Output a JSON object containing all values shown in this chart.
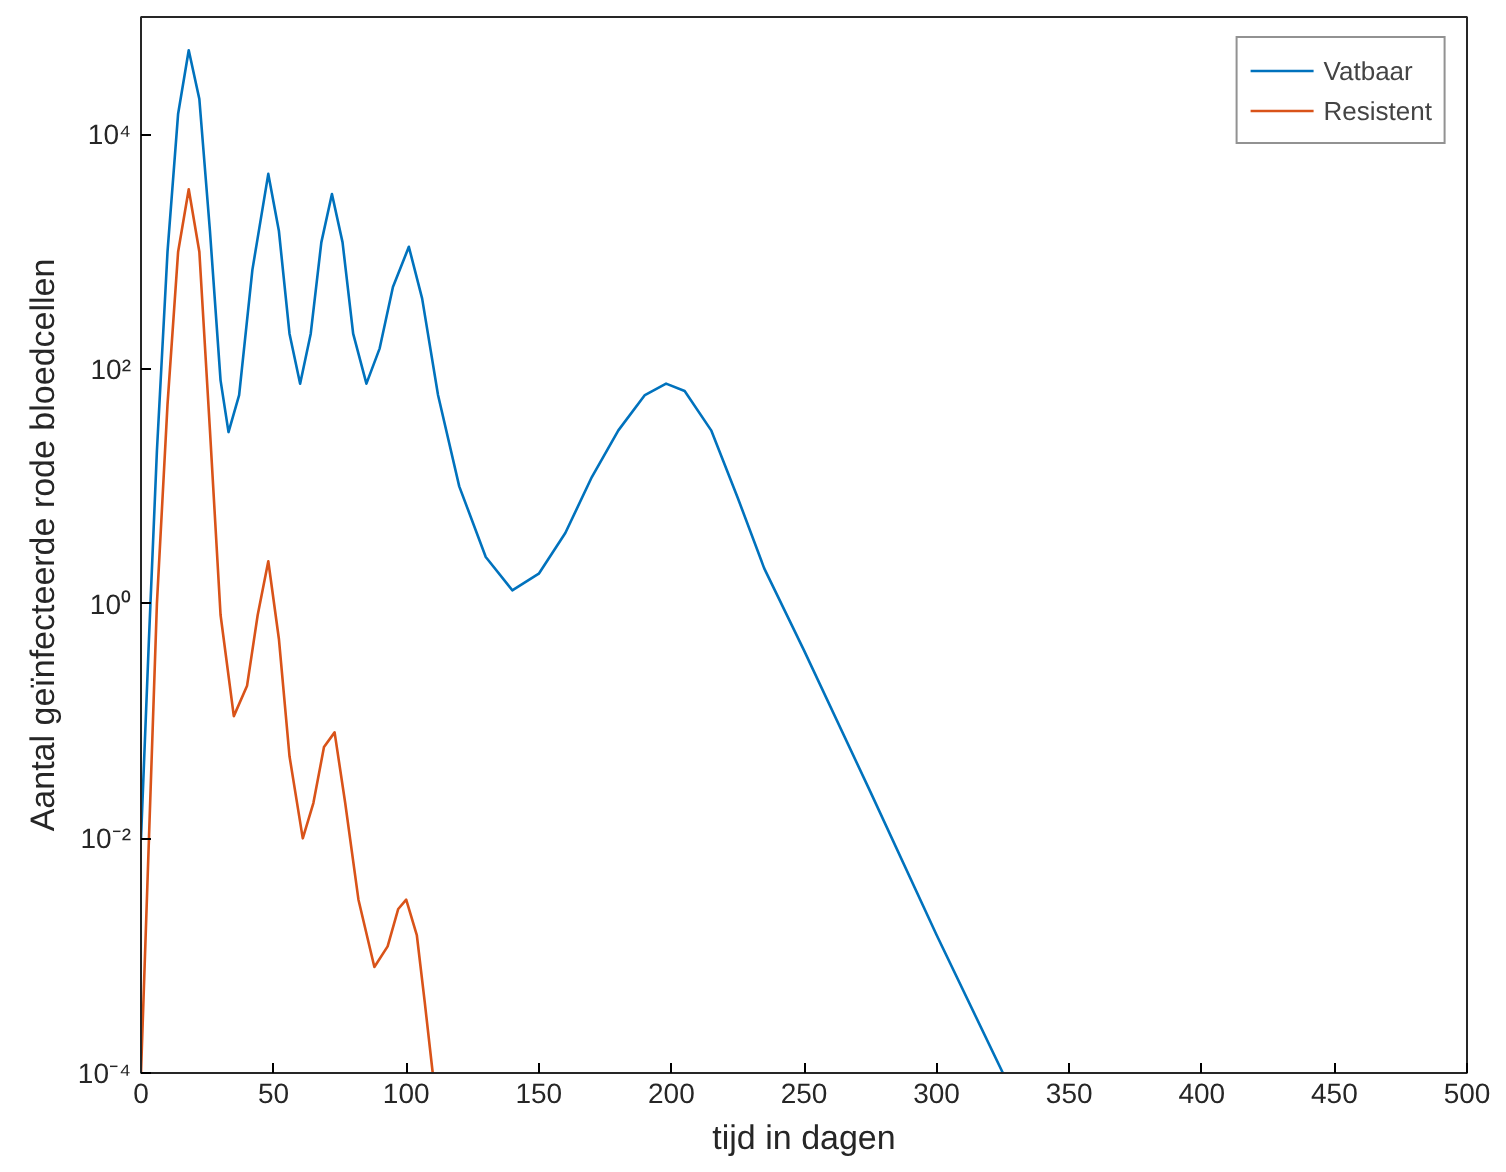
{
  "chart_data": {
    "type": "line",
    "xlabel": "tijd in dagen",
    "ylabel": "Aantal geïnfecteerde rode bloedcellen",
    "log": "y",
    "xlim": [
      0,
      500
    ],
    "ylim": [
      0.0001,
      100000
    ],
    "xticks": [
      0,
      50,
      100,
      150,
      200,
      250,
      300,
      350,
      400,
      450,
      500
    ],
    "yticks": [
      {
        "value": 0.0001,
        "label": "10⁻⁴"
      },
      {
        "value": 0.01,
        "label": "10⁻²"
      },
      {
        "value": 1,
        "label": "10⁰"
      },
      {
        "value": 100,
        "label": "10²"
      },
      {
        "value": 10000,
        "label": "10⁴"
      }
    ],
    "grid": false,
    "legend": "top right",
    "line_style": "solid",
    "marker": "none",
    "series": [
      {
        "name": "Vatbaar",
        "color": "#0072bd",
        "x": [
          0,
          3,
          6,
          10,
          14,
          18,
          22,
          26,
          30,
          33,
          37,
          42,
          48,
          52,
          56,
          60,
          64,
          68,
          72,
          76,
          80,
          85,
          90,
          95,
          101,
          106,
          112,
          120,
          130,
          140,
          150,
          160,
          170,
          180,
          190,
          198,
          205,
          215,
          225,
          235,
          250,
          275,
          300,
          325
        ],
        "values": [
          0.01,
          0.5,
          20,
          1000,
          15000,
          52000,
          20000,
          1500,
          80,
          29,
          60,
          700,
          4600,
          1500,
          200,
          75,
          200,
          1200,
          3100,
          1200,
          200,
          75,
          150,
          500,
          1100,
          400,
          60,
          10,
          2.5,
          1.3,
          1.8,
          4,
          12,
          30,
          60,
          75,
          65,
          30,
          8,
          2,
          0.4,
          0.025,
          0.0015,
          0.0001
        ]
      },
      {
        "name": "Resistent",
        "color": "#d95319",
        "x": [
          0,
          3,
          6,
          10,
          14,
          18,
          22,
          26,
          30,
          35,
          40,
          44,
          48,
          52,
          56,
          61,
          65,
          69,
          73,
          77,
          82,
          88,
          93,
          97,
          100,
          104,
          107,
          110
        ],
        "values": [
          0.0001,
          0.01,
          1,
          50,
          1000,
          3400,
          1000,
          30,
          0.8,
          0.11,
          0.2,
          0.8,
          2.3,
          0.5,
          0.05,
          0.01,
          0.02,
          0.06,
          0.08,
          0.02,
          0.003,
          0.0008,
          0.0012,
          0.0025,
          0.003,
          0.0015,
          0.0004,
          0.0001
        ]
      }
    ]
  }
}
